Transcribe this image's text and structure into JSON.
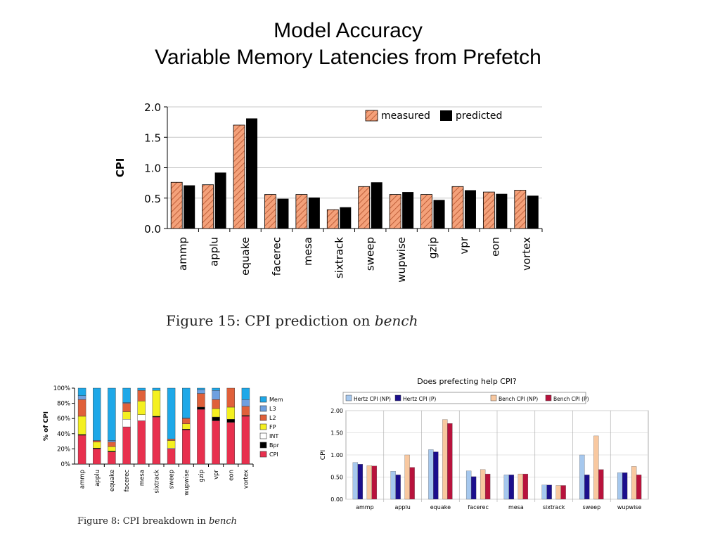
{
  "slide": {
    "title_line1": "Model Accuracy",
    "title_line2": "Variable Memory Latencies from Prefetch"
  },
  "figure1": {
    "caption_prefix": "Figure 15:  CPI prediction on ",
    "caption_italic": "bench"
  },
  "figure3": {
    "caption_prefix": "Figure 8:  CPI breakdown in ",
    "caption_italic": "bench"
  },
  "chart_data": [
    {
      "id": "cpi-prediction",
      "type": "bar",
      "title": "",
      "xlabel": "",
      "ylabel": "CPI",
      "ylim": [
        0,
        2.0
      ],
      "yticks": [
        "0.0",
        "0.5",
        "1.0",
        "1.5",
        "2.0"
      ],
      "grid": true,
      "legend_placement": "top-right",
      "categories": [
        "ammp",
        "applu",
        "equake",
        "facerec",
        "mesa",
        "sixtrack",
        "sweep",
        "wupwise",
        "gzip",
        "vpr",
        "eon",
        "vortex"
      ],
      "series": [
        {
          "name": "measured",
          "color": "#f4a17a",
          "pattern": "hatched",
          "values": [
            0.76,
            0.72,
            1.7,
            0.56,
            0.56,
            0.31,
            0.69,
            0.56,
            0.56,
            0.69,
            0.6,
            0.63
          ]
        },
        {
          "name": "predicted",
          "color": "#000000",
          "values": [
            0.71,
            0.92,
            1.81,
            0.49,
            0.51,
            0.35,
            0.76,
            0.6,
            0.47,
            0.63,
            0.57,
            0.54
          ]
        }
      ]
    },
    {
      "id": "prefetch-help",
      "type": "bar",
      "title": "Does prefecting help CPI?",
      "xlabel": "",
      "ylabel": "CPI",
      "ylim": [
        0,
        2.0
      ],
      "yticks": [
        "0.00",
        "0.50",
        "1.00",
        "1.50",
        "2.00"
      ],
      "grid": true,
      "legend_placement": "top",
      "categories": [
        "ammp",
        "applu",
        "equake",
        "facerec",
        "mesa",
        "sixtrack",
        "sweep",
        "wupwise"
      ],
      "series": [
        {
          "name": "Hertz CPI (NP)",
          "color": "#a6c8ee",
          "values": [
            0.83,
            0.63,
            1.12,
            0.64,
            0.55,
            0.32,
            1.0,
            0.6
          ]
        },
        {
          "name": "Hertz CPI (P)",
          "color": "#1b0e8c",
          "values": [
            0.79,
            0.55,
            1.07,
            0.51,
            0.55,
            0.32,
            0.55,
            0.6
          ]
        },
        {
          "name": "Bench CPI (NP)",
          "color": "#f8c8a0",
          "values": [
            0.76,
            1.0,
            1.8,
            0.67,
            0.57,
            0.31,
            1.43,
            0.74
          ]
        },
        {
          "name": "Bench CPI (P)",
          "color": "#b8123c",
          "values": [
            0.75,
            0.72,
            1.71,
            0.57,
            0.57,
            0.31,
            0.67,
            0.55
          ]
        }
      ]
    },
    {
      "id": "cpi-breakdown",
      "type": "bar",
      "stacked": true,
      "title": "",
      "xlabel": "",
      "ylabel": "% of CPI",
      "ylim": [
        0,
        100
      ],
      "yticks": [
        "0%",
        "20%",
        "40%",
        "60%",
        "80%",
        "100%"
      ],
      "legend_placement": "right",
      "categories": [
        "ammp",
        "applu",
        "equake",
        "facerec",
        "mesa",
        "sixtrack",
        "sweep",
        "wupwise",
        "gzip",
        "vpr",
        "eon",
        "vortex"
      ],
      "series": [
        {
          "name": "CPI",
          "color": "#e8304e",
          "values": [
            38,
            20,
            16,
            49,
            57,
            62,
            20,
            45,
            72,
            57,
            55,
            63
          ]
        },
        {
          "name": "Bpr",
          "color": "#000000",
          "values": [
            1,
            1,
            1,
            0,
            0,
            1,
            0,
            1,
            3,
            5,
            4,
            1
          ]
        },
        {
          "name": "INT",
          "color": "#ffffff",
          "values": [
            0,
            0,
            0,
            10,
            8,
            0,
            1,
            0,
            0,
            0,
            0,
            0
          ]
        },
        {
          "name": "FP",
          "color": "#f4f020",
          "values": [
            24,
            8,
            6,
            10,
            18,
            34,
            10,
            7,
            0,
            11,
            16,
            0
          ]
        },
        {
          "name": "L2",
          "color": "#e0603a",
          "values": [
            22,
            2,
            6,
            11,
            14,
            0,
            2,
            7,
            18,
            12,
            25,
            12
          ]
        },
        {
          "name": "L3",
          "color": "#6fa0e0",
          "values": [
            5,
            0,
            2,
            1,
            0,
            0,
            0,
            1,
            5,
            12,
            0,
            9
          ]
        },
        {
          "name": "Mem",
          "color": "#1ea8e8",
          "values": [
            10,
            69,
            69,
            19,
            3,
            3,
            67,
            39,
            2,
            3,
            0,
            15
          ]
        }
      ]
    }
  ]
}
